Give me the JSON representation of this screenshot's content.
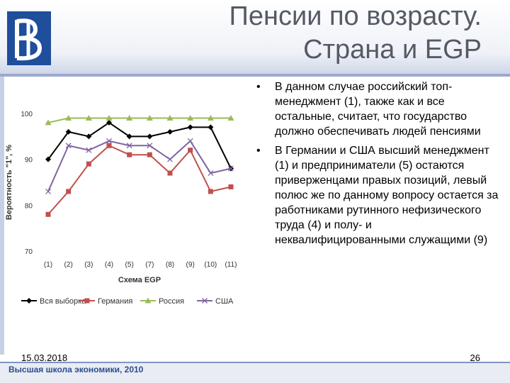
{
  "slide": {
    "title_line1": "Пенсии по возрасту.",
    "title_line2": "Страна и EGP",
    "bullets": [
      "В данном случае российский топ-менеджмент (1), также как и все остальные, считает, что государство должно обеспечивать людей пенсиями",
      "В Германии и США высший менеджмент (1) и предприниматели (5) остаются приверженцами правых позиций, левый полюс же по данному вопросу остается за работниками рутинного нефизического труда (4) и полу- и неквалифицированными служащими (9)"
    ],
    "footer_date": "15.03.2018",
    "footer_page": "26",
    "footer_org": "Высшая школа экономики, 2010"
  },
  "chart_data": {
    "type": "line",
    "categories": [
      "(1)",
      "(2)",
      "(3)",
      "(4)",
      "(5)",
      "(7)",
      "(8)",
      "(9)",
      "(10)",
      "(11)"
    ],
    "xlabel": "Схема EGP",
    "ylabel": "Вероятность \"1\", %",
    "ylim": [
      70,
      100
    ],
    "yticks": [
      70,
      80,
      90,
      100
    ],
    "grid": false,
    "legend": "bottom",
    "series": [
      {
        "name": "Вся выборка",
        "color": "#000000",
        "marker": "diamond",
        "values": [
          90,
          96,
          95,
          98,
          95,
          95,
          96,
          97,
          97,
          88
        ]
      },
      {
        "name": "Германия",
        "color": "#c0504d",
        "marker": "square",
        "values": [
          78,
          83,
          89,
          93,
          91,
          91,
          87,
          92,
          83,
          84
        ]
      },
      {
        "name": "Россия",
        "color": "#9bbb59",
        "marker": "triangle",
        "values": [
          98,
          99,
          99,
          99,
          99,
          99,
          99,
          99,
          99,
          99
        ]
      },
      {
        "name": "США",
        "color": "#8064a2",
        "marker": "x",
        "values": [
          83,
          93,
          92,
          94,
          93,
          93,
          90,
          94,
          87,
          88
        ]
      }
    ]
  }
}
